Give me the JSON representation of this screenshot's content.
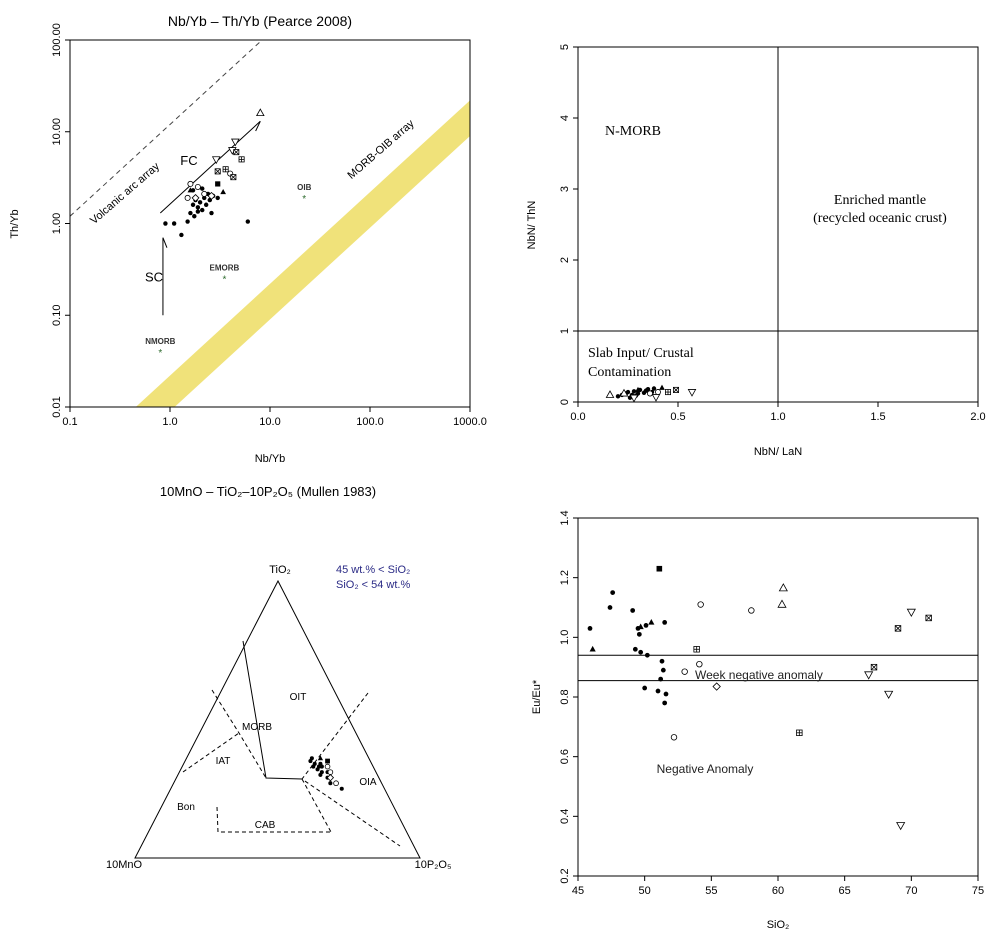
{
  "chart_data": [
    {
      "id": "pearce",
      "type": "scatter",
      "title": "Nb/Yb – Th/Yb (Pearce 2008)",
      "xlabel": "Nb/Yb",
      "ylabel": "Th/Yb",
      "x_scale": "log",
      "y_scale": "log",
      "xlim": [
        0.1,
        1000
      ],
      "ylim": [
        0.01,
        100
      ],
      "x_ticks": [
        "0.1",
        "1.0",
        "10.0",
        "100.0",
        "1000.0"
      ],
      "y_ticks": [
        "0.01",
        "0.10",
        "1.00",
        "10.00",
        "100.00"
      ],
      "colors": {
        "array_band": "#f0e27a",
        "points": "#000000",
        "reference_star": "#2e6b2e"
      },
      "regions": {
        "morb_oib_array": "MORB-OIB array",
        "volcanic_arc_array": "Volcanic arc array"
      },
      "vectors": [
        {
          "label": "FC",
          "from": [
            0.8,
            1.3
          ],
          "to": [
            8.0,
            13.0
          ]
        },
        {
          "label": "SC",
          "from": [
            0.85,
            0.1
          ],
          "to": [
            0.85,
            0.7
          ]
        }
      ],
      "references": [
        {
          "label": "NMORB",
          "x": 0.8,
          "y": 0.04
        },
        {
          "label": "EMORB",
          "x": 3.5,
          "y": 0.25
        },
        {
          "label": "OIB",
          "x": 22,
          "y": 1.9
        }
      ],
      "series": [
        {
          "marker": "dot",
          "points": [
            [
              0.9,
              1.0
            ],
            [
              1.1,
              1.0
            ],
            [
              1.3,
              0.75
            ],
            [
              1.5,
              1.05
            ],
            [
              1.6,
              1.3
            ],
            [
              1.7,
              1.6
            ],
            [
              1.75,
              1.2
            ],
            [
              1.8,
              1.8
            ],
            [
              1.9,
              1.5
            ],
            [
              2.0,
              1.7
            ],
            [
              2.1,
              1.4
            ],
            [
              2.2,
              1.9
            ],
            [
              2.3,
              1.6
            ],
            [
              2.4,
              2.1
            ],
            [
              2.5,
              1.8
            ],
            [
              2.6,
              1.3
            ],
            [
              2.7,
              2.0
            ],
            [
              2.1,
              2.4
            ],
            [
              1.9,
              1.35
            ],
            [
              6.0,
              1.05
            ],
            [
              3.0,
              1.9
            ],
            [
              1.7,
              2.3
            ]
          ]
        },
        {
          "marker": "filled-triangle",
          "points": [
            [
              1.6,
              2.3
            ],
            [
              3.4,
              2.2
            ]
          ]
        },
        {
          "marker": "filled-square",
          "points": [
            [
              3.0,
              2.7
            ]
          ]
        },
        {
          "marker": "circle",
          "points": [
            [
              1.6,
              2.7
            ],
            [
              2.2,
              2.1
            ],
            [
              1.9,
              2.5
            ],
            [
              4.0,
              3.5
            ],
            [
              1.5,
              1.9
            ]
          ]
        },
        {
          "marker": "diamond",
          "points": [
            [
              2.6,
              2.0
            ],
            [
              1.8,
              1.9
            ]
          ]
        },
        {
          "marker": "triangle",
          "points": [
            [
              8.0,
              16.0
            ]
          ]
        },
        {
          "marker": "down-triangle",
          "points": [
            [
              2.9,
              5.0
            ],
            [
              4.5,
              7.8
            ],
            [
              4.2,
              6.3
            ]
          ]
        },
        {
          "marker": "boxed-plus",
          "points": [
            [
              3.6,
              3.9
            ],
            [
              5.2,
              5.0
            ]
          ]
        },
        {
          "marker": "boxed-x",
          "points": [
            [
              3.0,
              3.7
            ],
            [
              4.6,
              6.0
            ],
            [
              4.3,
              3.2
            ]
          ]
        }
      ]
    },
    {
      "id": "nbla-thn",
      "type": "scatter",
      "title": "",
      "xlabel": "NbN/ LaN",
      "ylabel": "NbN/ ThN",
      "xlim": [
        0,
        2
      ],
      "ylim": [
        0,
        5
      ],
      "x_ticks": [
        "0.0",
        "0.5",
        "1.0",
        "1.5",
        "2.0"
      ],
      "y_ticks": [
        "0",
        "1",
        "2",
        "3",
        "4",
        "5"
      ],
      "regions": {
        "n_morb": "N-MORB",
        "enriched_line1": "Enriched mantle",
        "enriched_line2": "(recycled oceanic crust)",
        "slab_line1": "Slab Input/ Crustal",
        "slab_line2": "Contamination"
      },
      "dividers": {
        "vertical_x": 1.0,
        "horizontal_y": 1.0
      },
      "series": [
        {
          "marker": "dot",
          "points": [
            [
              0.2,
              0.08
            ],
            [
              0.22,
              0.1
            ],
            [
              0.24,
              0.12
            ],
            [
              0.25,
              0.14
            ],
            [
              0.27,
              0.1
            ],
            [
              0.28,
              0.15
            ],
            [
              0.3,
              0.12
            ],
            [
              0.31,
              0.17
            ],
            [
              0.33,
              0.13
            ],
            [
              0.34,
              0.16
            ],
            [
              0.35,
              0.18
            ],
            [
              0.37,
              0.14
            ],
            [
              0.38,
              0.19
            ],
            [
              0.4,
              0.15
            ],
            [
              0.26,
              0.06
            ],
            [
              0.29,
              0.09
            ]
          ]
        },
        {
          "marker": "filled-triangle",
          "points": [
            [
              0.42,
              0.2
            ],
            [
              0.3,
              0.17
            ]
          ]
        },
        {
          "marker": "triangle",
          "points": [
            [
              0.16,
              0.1
            ],
            [
              0.23,
              0.12
            ]
          ]
        },
        {
          "marker": "circle",
          "points": [
            [
              0.36,
              0.12
            ],
            [
              0.4,
              0.14
            ]
          ]
        },
        {
          "marker": "down-triangle",
          "points": [
            [
              0.57,
              0.14
            ],
            [
              0.39,
              0.07
            ],
            [
              0.28,
              0.06
            ]
          ]
        },
        {
          "marker": "boxed-plus",
          "points": [
            [
              0.45,
              0.14
            ]
          ]
        },
        {
          "marker": "boxed-x",
          "points": [
            [
              0.49,
              0.17
            ]
          ]
        }
      ]
    },
    {
      "id": "mullen",
      "type": "scatter",
      "title": "10MnO – TiO₂–10P₂O₅ (Mullen 1983)",
      "vertices": {
        "top": "TiO₂",
        "left": "10MnO",
        "right": "10P₂O₅"
      },
      "note_line1": "45 wt.% < SiO₂",
      "note_line2": "SiO₂ < 54 wt.%",
      "colors": {
        "note": "#2b2b86"
      },
      "fields": {
        "oit": "OIT",
        "morb": "MORB",
        "iat": "IAT",
        "oia": "OIA",
        "bon": "Bon",
        "cab": "CAB"
      },
      "series": [
        {
          "marker": "dot",
          "points": [
            [
              0.36,
              0.2,
              0.44
            ],
            [
              0.35,
              0.21,
              0.44
            ],
            [
              0.34,
              0.2,
              0.46
            ],
            [
              0.33,
              0.21,
              0.46
            ],
            [
              0.33,
              0.19,
              0.48
            ],
            [
              0.32,
              0.2,
              0.48
            ],
            [
              0.31,
              0.19,
              0.5
            ],
            [
              0.29,
              0.18,
              0.53
            ],
            [
              0.27,
              0.18,
              0.55
            ],
            [
              0.33,
              0.18,
              0.49
            ],
            [
              0.31,
              0.17,
              0.52
            ],
            [
              0.25,
              0.15,
              0.6
            ],
            [
              0.34,
              0.18,
              0.48
            ],
            [
              0.3,
              0.2,
              0.5
            ]
          ]
        },
        {
          "marker": "filled-square",
          "points": [
            [
              0.35,
              0.15,
              0.5
            ]
          ]
        },
        {
          "marker": "filled-triangle",
          "points": [
            [
              0.36,
              0.17,
              0.47
            ]
          ]
        },
        {
          "marker": "circle",
          "points": [
            [
              0.31,
              0.16,
              0.53
            ],
            [
              0.27,
              0.16,
              0.57
            ],
            [
              0.33,
              0.16,
              0.51
            ]
          ]
        },
        {
          "marker": "diamond",
          "points": [
            [
              0.29,
              0.17,
              0.54
            ]
          ]
        }
      ]
    },
    {
      "id": "eu-sio2",
      "type": "scatter",
      "title": "",
      "xlabel": "SiO₂",
      "ylabel": "Eu/Eu*",
      "xlim": [
        45,
        75
      ],
      "ylim": [
        0.2,
        1.4
      ],
      "x_ticks": [
        "45",
        "50",
        "55",
        "60",
        "65",
        "70",
        "75"
      ],
      "y_ticks": [
        "0.2",
        "0.4",
        "0.6",
        "0.8",
        "1.0",
        "1.2",
        "1.4"
      ],
      "reference_lines": [
        0.94,
        0.855
      ],
      "regions": {
        "weak": "Week negative anomaly",
        "negative": "Negative Anomaly"
      },
      "series": [
        {
          "marker": "dot",
          "points": [
            [
              45.9,
              1.03
            ],
            [
              47.6,
              1.15
            ],
            [
              47.4,
              1.1
            ],
            [
              49.1,
              1.09
            ],
            [
              49.5,
              1.03
            ],
            [
              49.6,
              1.01
            ],
            [
              49.3,
              0.96
            ],
            [
              49.7,
              0.95
            ],
            [
              50.2,
              0.94
            ],
            [
              50.1,
              1.04
            ],
            [
              51.5,
              1.05
            ],
            [
              51.3,
              0.92
            ],
            [
              51.4,
              0.89
            ],
            [
              51.2,
              0.86
            ],
            [
              51.0,
              0.82
            ],
            [
              51.6,
              0.81
            ],
            [
              50.0,
              0.83
            ],
            [
              51.5,
              0.78
            ]
          ]
        },
        {
          "marker": "filled-triangle",
          "points": [
            [
              46.1,
              0.96
            ],
            [
              50.5,
              1.05
            ],
            [
              49.7,
              1.035
            ]
          ]
        },
        {
          "marker": "filled-square",
          "points": [
            [
              51.1,
              1.23
            ]
          ]
        },
        {
          "marker": "circle",
          "points": [
            [
              54.2,
              1.11
            ],
            [
              58.0,
              1.09
            ],
            [
              54.1,
              0.91
            ],
            [
              52.2,
              0.665
            ],
            [
              53.0,
              0.885
            ]
          ]
        },
        {
          "marker": "diamond",
          "points": [
            [
              55.4,
              0.835
            ]
          ]
        },
        {
          "marker": "triangle",
          "points": [
            [
              60.4,
              1.165
            ],
            [
              60.3,
              1.11
            ]
          ]
        },
        {
          "marker": "down-triangle",
          "points": [
            [
              70.0,
              1.085
            ],
            [
              66.8,
              0.875
            ],
            [
              68.3,
              0.81
            ],
            [
              69.2,
              0.37
            ]
          ]
        },
        {
          "marker": "boxed-plus",
          "points": [
            [
              53.9,
              0.96
            ],
            [
              61.6,
              0.68
            ]
          ]
        },
        {
          "marker": "boxed-x",
          "points": [
            [
              69.0,
              1.03
            ],
            [
              71.3,
              1.065
            ],
            [
              67.2,
              0.9
            ]
          ]
        }
      ]
    }
  ]
}
